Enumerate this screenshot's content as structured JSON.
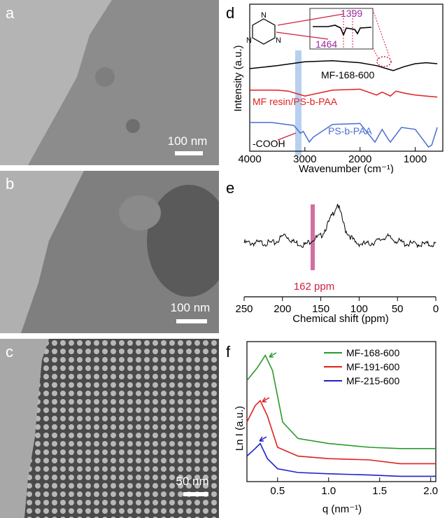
{
  "panel_a": {
    "label": "a",
    "scale_text": "100 nm"
  },
  "panel_b": {
    "label": "b",
    "scale_text": "100 nm"
  },
  "panel_c": {
    "label": "c",
    "scale_text": "50 nm"
  },
  "panel_d": {
    "label": "d",
    "ylabel": "Intensity (a.u.)",
    "xlabel": "Wavenumber (cm⁻¹)",
    "xticks": [
      "4000",
      "3000",
      "2000",
      "1000"
    ],
    "inset_labels": [
      "1399",
      "1464"
    ],
    "series_labels": [
      "MF-168-600",
      "MF resin/PS-b-PAA",
      "PS-b-PAA"
    ],
    "annotation": "-COOH",
    "colors": {
      "mf168": "#000000",
      "mfresin": "#e02020",
      "psbpaa": "#4a6fd0",
      "inset_label": "#9a2aa0",
      "highlight": "#b8d0ee"
    }
  },
  "panel_e": {
    "label": "e",
    "xlabel": "Chemical shift (ppm)",
    "xticks": [
      "250",
      "200",
      "150",
      "100",
      "50",
      "0"
    ],
    "marker_text": "162 ppm",
    "colors": {
      "marker": "#d070a0",
      "marker_text": "#d02040"
    }
  },
  "panel_f": {
    "label": "f",
    "ylabel": "Ln I (a.u.)",
    "xlabel": "q (nm⁻¹)",
    "xticks": [
      "0.5",
      "1.0",
      "1.5",
      "2.0"
    ],
    "legend": [
      "MF-168-600",
      "MF-191-600",
      "MF-215-600"
    ],
    "colors": {
      "green": "#2a9a2a",
      "red": "#e02020",
      "blue": "#2020c8"
    }
  },
  "chart_data": [
    {
      "type": "line",
      "panel": "d",
      "xlabel": "Wavenumber (cm⁻¹)",
      "ylabel": "Intensity (a.u.)",
      "xlim": [
        4000,
        500
      ],
      "x_reversed": true,
      "series": [
        {
          "name": "MF-168-600",
          "x": [
            4000,
            3500,
            3000,
            2500,
            2000,
            1700,
            1464,
            1399,
            1200,
            1000,
            800,
            600
          ],
          "y": [
            0.8,
            0.83,
            0.87,
            0.88,
            0.86,
            0.83,
            0.79,
            0.78,
            0.82,
            0.85,
            0.86,
            0.85
          ]
        },
        {
          "name": "MF resin/PS-b-PAA",
          "x": [
            4000,
            3500,
            3300,
            3000,
            2500,
            2000,
            1700,
            1600,
            1450,
            1350,
            1200,
            1000,
            800,
            600
          ],
          "y": [
            0.58,
            0.58,
            0.57,
            0.52,
            0.58,
            0.59,
            0.53,
            0.56,
            0.52,
            0.57,
            0.55,
            0.53,
            0.52,
            0.51
          ]
        },
        {
          "name": "PS-b-PAA",
          "x": [
            4000,
            3600,
            3200,
            3080,
            3030,
            2920,
            2850,
            2500,
            2000,
            1730,
            1600,
            1490,
            1450,
            1250,
            1000,
            760,
            700,
            600
          ],
          "y": [
            0.25,
            0.25,
            0.22,
            0.14,
            0.16,
            0.05,
            0.1,
            0.23,
            0.24,
            0.05,
            0.18,
            0.08,
            0.05,
            0.2,
            0.18,
            0.0,
            0.02,
            0.2
          ]
        }
      ]
    },
    {
      "type": "line",
      "panel": "e",
      "xlabel": "Chemical shift (ppm)",
      "xlim": [
        250,
        0
      ],
      "x_reversed": true,
      "series": [
        {
          "x": [
            250,
            210,
            197,
            185,
            170,
            162,
            150,
            140,
            128,
            118,
            105,
            90,
            75,
            65,
            55,
            40,
            20,
            0
          ],
          "y": [
            0.35,
            0.35,
            0.48,
            0.36,
            0.32,
            0.4,
            0.45,
            0.65,
            0.95,
            0.55,
            0.35,
            0.33,
            0.38,
            0.45,
            0.4,
            0.34,
            0.33,
            0.33
          ]
        }
      ]
    },
    {
      "type": "line",
      "panel": "f",
      "xlabel": "q (nm⁻¹)",
      "ylabel": "Ln I (a.u.)",
      "xlim": [
        0.2,
        2.05
      ],
      "series": [
        {
          "name": "MF-168-600",
          "x": [
            0.2,
            0.3,
            0.38,
            0.45,
            0.55,
            0.7,
            1.0,
            1.4,
            1.7,
            2.05
          ],
          "y": [
            0.78,
            0.88,
            0.98,
            0.86,
            0.45,
            0.32,
            0.28,
            0.25,
            0.24,
            0.24
          ]
        },
        {
          "name": "MF-191-600",
          "x": [
            0.2,
            0.28,
            0.33,
            0.4,
            0.5,
            0.7,
            1.0,
            1.4,
            1.7,
            2.05
          ],
          "y": [
            0.45,
            0.58,
            0.62,
            0.5,
            0.25,
            0.18,
            0.16,
            0.15,
            0.12,
            0.12
          ]
        },
        {
          "name": "MF-215-600",
          "x": [
            0.2,
            0.28,
            0.33,
            0.4,
            0.5,
            0.7,
            1.0,
            1.4,
            1.7,
            2.05
          ],
          "y": [
            0.18,
            0.24,
            0.28,
            0.16,
            0.08,
            0.05,
            0.04,
            0.03,
            0.02,
            0.02
          ]
        }
      ]
    }
  ]
}
